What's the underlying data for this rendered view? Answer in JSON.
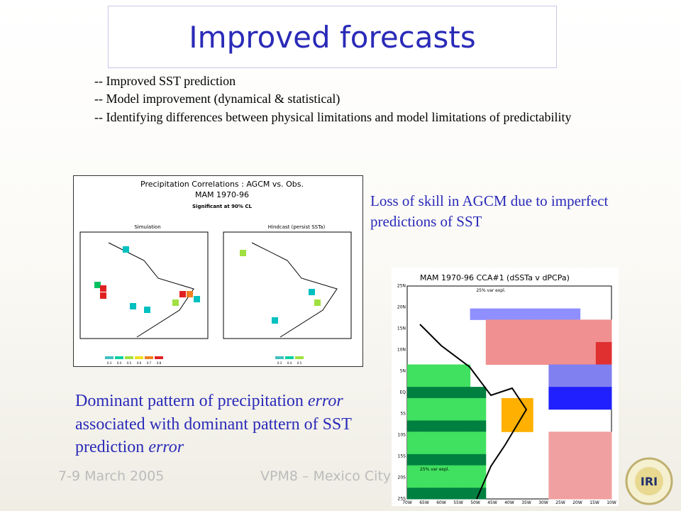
{
  "title": "Improved forecasts",
  "bullets": [
    "-- Improved SST prediction",
    "-- Model improvement (dynamical & statistical)",
    "-- Identifying differences between physical limitations and model limitations of predictability"
  ],
  "caption_right": [
    "Loss of skill in AGCM due to imperfect",
    "predictions of SST"
  ],
  "caption_left": [
    [
      "Dominant pattern of precipitation ",
      "error"
    ],
    [
      "associated with dominant pattern of SST"
    ],
    [
      "prediction ",
      "error"
    ]
  ],
  "figure1": {
    "title": "Precipitation Correlations : AGCM vs. Obs.",
    "subtitle": "MAM 1970-96",
    "note": "Significant at 90% CL",
    "panels": [
      "Simulation",
      "Hindcast (persist SSTa)"
    ],
    "colorbar_left": [
      "0.3",
      "0.4",
      "0.5",
      "0.6",
      "0.7",
      "0.8"
    ],
    "colorbar_right": [
      "0.3",
      "0.4",
      "0.5"
    ]
  },
  "figure2": {
    "title": "MAM 1970-96 CCA#1 (dSSTa v dPCPa)",
    "top_note": "25% var expl.",
    "bottom_note": "25% var expl.",
    "ylabels": [
      "25N",
      "20N",
      "15N",
      "10N",
      "5N",
      "EQ",
      "5S",
      "10S",
      "15S",
      "20S",
      "25S"
    ],
    "xlabels": [
      "70W",
      "65W",
      "60W",
      "55W",
      "50W",
      "45W",
      "40W",
      "35W",
      "30W",
      "25W",
      "20W",
      "15W",
      "10W"
    ]
  },
  "footer": {
    "date": "7-9 March 2005",
    "event": "VPM8 – Mexico City"
  },
  "logo": "IRI"
}
